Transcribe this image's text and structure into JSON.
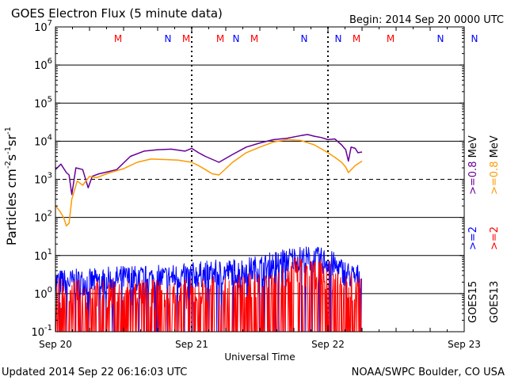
{
  "header": {
    "title": "GOES Electron Flux (5 minute data)",
    "begin": "Begin: 2014 Sep 20 0000 UTC"
  },
  "footer": {
    "updated": "Updated 2014 Sep 22 06:16:03 UTC",
    "credit": "NOAA/SWPC Boulder, CO USA"
  },
  "chart_data": {
    "type": "line",
    "title": "GOES Electron Flux (5 minute data)",
    "xlabel": "Universal Time",
    "ylabel": "Particles cm-2s-1sr-1",
    "yscale": "log",
    "ylim": [
      0.1,
      10000000
    ],
    "xlim_days": [
      0,
      3
    ],
    "x_tick_labels": [
      "Sep 20",
      "Sep 21",
      "Sep 22",
      "Sep 23"
    ],
    "y_tick_labels": [
      {
        "base": "10",
        "exp": "-1"
      },
      {
        "base": "10",
        "exp": "0"
      },
      {
        "base": "10",
        "exp": "1"
      },
      {
        "base": "10",
        "exp": "2"
      },
      {
        "base": "10",
        "exp": "3"
      },
      {
        "base": "10",
        "exp": "4"
      },
      {
        "base": "10",
        "exp": "5"
      },
      {
        "base": "10",
        "exp": "6"
      },
      {
        "base": "10",
        "exp": "7"
      }
    ],
    "threshold": 1000,
    "day_markers": [
      {
        "m": [
          0.5,
          1.5
        ],
        "n": [
          1.0,
          2.0
        ]
      },
      {
        "m": [
          0.0,
          0.5
        ],
        "n": [
          1.0,
          1.5
        ]
      },
      {
        "m": [
          0.0,
          0.5
        ],
        "n": [
          1.0,
          1.5
        ]
      }
    ],
    "marker_colors": {
      "M": "#ff0000",
      "N": "#0000ff"
    },
    "legend": {
      "goes15": "GOES15",
      "goes13": "GOES13",
      "ge08": ">=0.8 MeV",
      "ge2": ">=2"
    },
    "series": [
      {
        "name": "GOES15 >=0.8 MeV",
        "color": "#660099",
        "x": [
          0,
          0.04,
          0.08,
          0.1,
          0.12,
          0.15,
          0.2,
          0.24,
          0.27,
          0.32,
          0.36,
          0.45,
          0.55,
          0.65,
          0.75,
          0.85,
          0.95,
          1.0,
          1.05,
          1.1,
          1.2,
          1.3,
          1.4,
          1.5,
          1.6,
          1.7,
          1.8,
          1.85,
          1.9,
          1.95,
          2.0,
          2.05,
          2.1,
          2.13,
          2.15,
          2.17,
          2.2,
          2.22,
          2.25
        ],
        "y": [
          1800,
          2500,
          1500,
          1300,
          400,
          2000,
          1800,
          600,
          1200,
          1400,
          1500,
          1800,
          4000,
          5500,
          6000,
          6200,
          5500,
          6500,
          5000,
          4000,
          2800,
          4500,
          7000,
          9000,
          11000,
          12000,
          14000,
          15000,
          13500,
          12500,
          11000,
          11500,
          8000,
          6000,
          3000,
          7000,
          6500,
          5000,
          5200
        ]
      },
      {
        "name": "GOES13 >=0.8 MeV",
        "color": "#ff9900",
        "x": [
          0,
          0.03,
          0.06,
          0.08,
          0.1,
          0.12,
          0.16,
          0.2,
          0.25,
          0.3,
          0.4,
          0.5,
          0.6,
          0.7,
          0.8,
          0.9,
          1.0,
          1.05,
          1.1,
          1.15,
          1.2,
          1.3,
          1.4,
          1.5,
          1.6,
          1.7,
          1.8,
          1.9,
          2.0,
          2.05,
          2.1,
          2.13,
          2.15,
          2.2,
          2.25
        ],
        "y": [
          200,
          150,
          100,
          60,
          70,
          300,
          900,
          700,
          1200,
          1100,
          1500,
          1900,
          2800,
          3400,
          3300,
          3200,
          2800,
          2300,
          1800,
          1400,
          1300,
          2800,
          5000,
          7000,
          9500,
          11000,
          10500,
          8000,
          5000,
          3800,
          2800,
          2100,
          1500,
          2300,
          3000
        ]
      },
      {
        "name": "GOES15 >=2 MeV",
        "color": "#0000ff",
        "band": true,
        "x": [
          0,
          0.25,
          0.5,
          0.75,
          1.0,
          1.2,
          1.4,
          1.55,
          1.65,
          1.75,
          1.85,
          2.0,
          2.1,
          2.2,
          2.25
        ],
        "y": [
          2,
          2,
          2.5,
          2.5,
          3,
          3.5,
          4,
          5,
          7,
          8,
          8,
          7,
          4,
          2.5,
          3
        ],
        "spread": 0.35,
        "drop": 0.08
      },
      {
        "name": "GOES13 >=2 MeV",
        "color": "#ff0000",
        "band": true,
        "x": [
          0,
          0.25,
          0.5,
          0.75,
          1.0,
          1.2,
          1.4,
          1.55,
          1.65,
          1.75,
          1.85,
          2.0,
          2.1,
          2.2,
          2.25
        ],
        "y": [
          1,
          0.9,
          1,
          0.9,
          1,
          1.2,
          1.5,
          2.5,
          3,
          4,
          3.5,
          3,
          2,
          1.5,
          1.5
        ],
        "spread": 0.4,
        "drop": 0.5
      }
    ]
  }
}
